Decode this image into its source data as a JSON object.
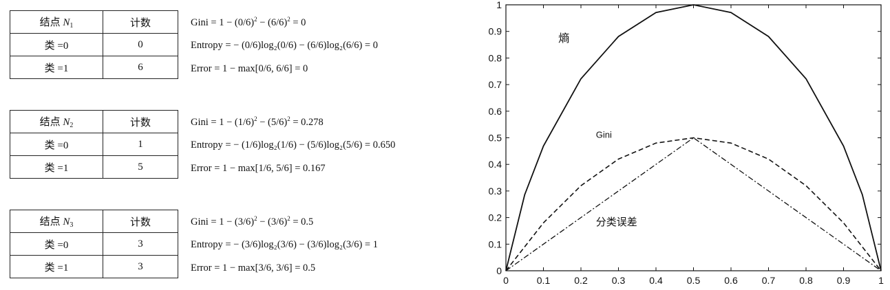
{
  "tables": [
    {
      "node_label": "结点",
      "node_symbol": "N",
      "node_index": "1",
      "count_header": "计数",
      "rows": [
        {
          "label": "类 =0",
          "count": "0"
        },
        {
          "label": "类 =1",
          "count": "6"
        }
      ],
      "gini": {
        "text": "Gini = 1 − (0/6)",
        "mid": " − (6/6)",
        "end": " = 0",
        "pow": "2"
      },
      "entropy": "Entropy = − (0/6)log₂(0/6) − (6/6)log₂(6/6) = 0",
      "error": "Error = 1 − max[0/6, 6/6] = 0"
    },
    {
      "node_label": "结点",
      "node_symbol": "N",
      "node_index": "2",
      "count_header": "计数",
      "rows": [
        {
          "label": "类 =0",
          "count": "1"
        },
        {
          "label": "类 =1",
          "count": "5"
        }
      ],
      "gini": {
        "text": "Gini = 1 − (1/6)",
        "mid": " − (5/6)",
        "end": " = 0.278",
        "pow": "2"
      },
      "entropy": "Entropy = − (1/6)log₂(1/6) − (5/6)log₂(5/6) = 0.650",
      "error": "Error = 1 − max[1/6, 5/6] = 0.167"
    },
    {
      "node_label": "结点",
      "node_symbol": "N",
      "node_index": "3",
      "count_header": "计数",
      "rows": [
        {
          "label": "类 =0",
          "count": "3"
        },
        {
          "label": "类 =1",
          "count": "3"
        }
      ],
      "gini": {
        "text": "Gini = 1 − (3/6)",
        "mid": " − (3/6)",
        "end": " = 0.5",
        "pow": "2"
      },
      "entropy": "Entropy = − (3/6)log₂(3/6) − (3/6)log₂(3/6) = 1",
      "error": "Error = 1 − max[3/6, 3/6] = 0.5"
    }
  ],
  "chart_data": {
    "type": "line",
    "xlim": [
      0,
      1
    ],
    "ylim": [
      0,
      1
    ],
    "xticks": [
      "0",
      "0.1",
      "0.2",
      "0.3",
      "0.4",
      "0.5",
      "0.6",
      "0.7",
      "0.8",
      "0.9",
      "1"
    ],
    "yticks": [
      "0",
      "0.1",
      "0.2",
      "0.3",
      "0.4",
      "0.5",
      "0.6",
      "0.7",
      "0.8",
      "0.9",
      "1"
    ],
    "series": [
      {
        "name": "熵",
        "style": "solid",
        "x": [
          0,
          0.05,
          0.1,
          0.2,
          0.3,
          0.4,
          0.5,
          0.6,
          0.7,
          0.8,
          0.9,
          0.95,
          1
        ],
        "y": [
          0,
          0.286,
          0.469,
          0.722,
          0.881,
          0.971,
          1,
          0.971,
          0.881,
          0.722,
          0.469,
          0.286,
          0
        ]
      },
      {
        "name": "Gini",
        "style": "dashed",
        "x": [
          0,
          0.1,
          0.2,
          0.3,
          0.4,
          0.5,
          0.6,
          0.7,
          0.8,
          0.9,
          1
        ],
        "y": [
          0,
          0.18,
          0.32,
          0.42,
          0.48,
          0.5,
          0.48,
          0.42,
          0.32,
          0.18,
          0
        ]
      },
      {
        "name": "分类误差",
        "style": "dashdot",
        "x": [
          0,
          0.5,
          1
        ],
        "y": [
          0,
          0.5,
          0
        ]
      }
    ],
    "grid": false
  }
}
